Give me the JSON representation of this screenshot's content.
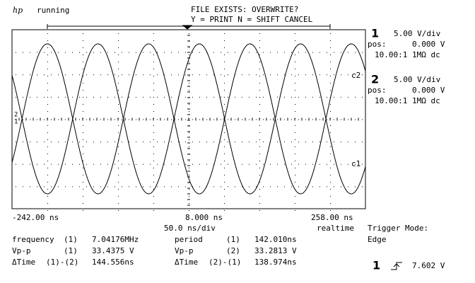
{
  "header": {
    "logo": "hp",
    "status": "running",
    "message": [
      "FILE EXISTS: OVERWRITE?",
      "Y = PRINT N = SHIFT CANCEL"
    ]
  },
  "channels": [
    {
      "number": "1",
      "scale": "5.00  V/div",
      "pos_label": "pos:",
      "pos": "0.000  V",
      "probe": "10.00:1  1MΩ dc"
    },
    {
      "number": "2",
      "scale": "5.00  V/div",
      "pos_label": "pos:",
      "pos": "0.000  V",
      "probe": "10.00:1  1MΩ dc"
    }
  ],
  "screen": {
    "trace_labels": [
      "c2",
      "c1"
    ],
    "ground_markers": [
      "2",
      "1"
    ]
  },
  "timebase": {
    "left": "-242.00 ns",
    "center": "8.000 ns",
    "right": "258.00 ns",
    "scale": "50.0 ns/div",
    "mode": "realtime"
  },
  "trigger": {
    "mode_label": "Trigger Mode:",
    "mode": "Edge",
    "source": "1",
    "level": "7.602  V"
  },
  "measurements": [
    {
      "name": "frequency",
      "source": "(1)",
      "value": "7.04176MHz"
    },
    {
      "name": "period",
      "source": "(1)",
      "value": "142.010ns"
    },
    {
      "name": "Vp-p",
      "source": "(1)",
      "value": "33.4375 V"
    },
    {
      "name": "Vp-p",
      "source": "(2)",
      "value": "33.2813 V"
    },
    {
      "name": "ΔTime",
      "source": "(1)-(2)",
      "value": "144.556ns"
    },
    {
      "name": "ΔTime",
      "source": "(2)-(1)",
      "value": "138.974ns"
    }
  ]
}
